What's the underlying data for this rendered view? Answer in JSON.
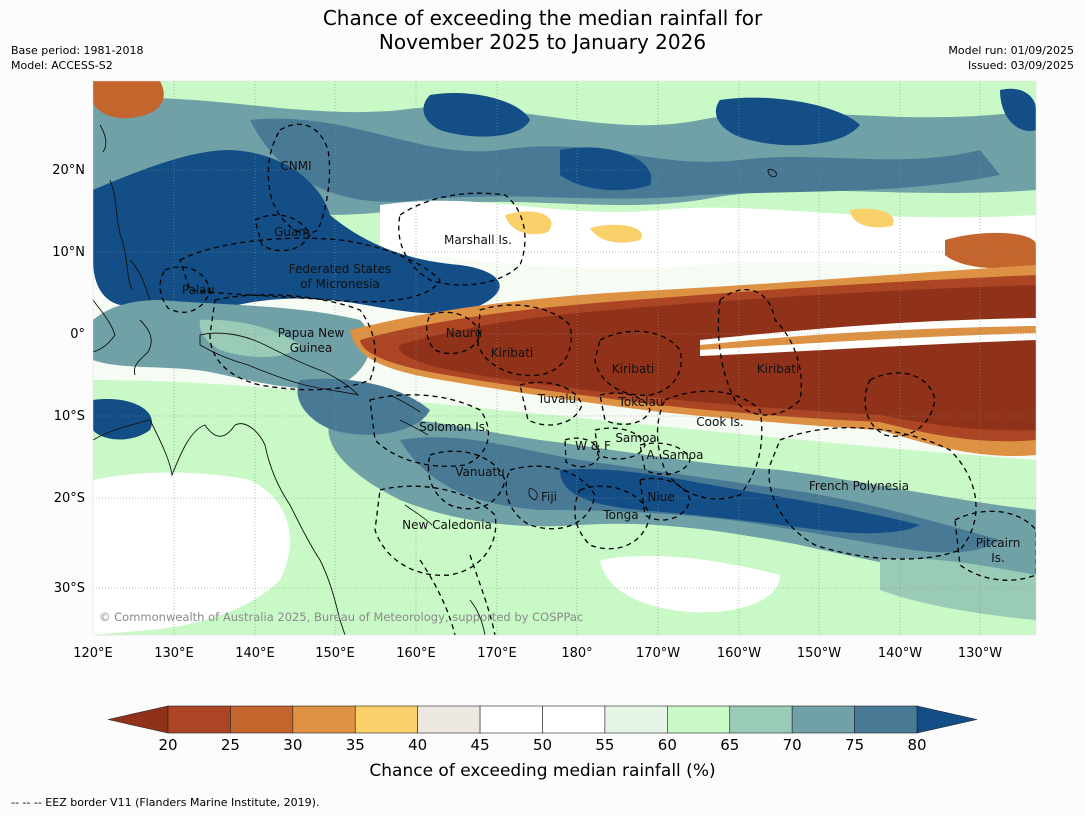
{
  "title_line1": "Chance of exceeding the median rainfall for",
  "title_line2": "November 2025 to January 2026",
  "meta": {
    "base_period": "Base period: 1981-2018",
    "model": "Model: ACCESS-S2",
    "model_run": "Model run: 01/09/2025",
    "issued": "Issued: 03/09/2025"
  },
  "map": {
    "lon_ticks": [
      "120°E",
      "130°E",
      "140°E",
      "150°E",
      "160°E",
      "170°E",
      "180°",
      "170°W",
      "160°W",
      "150°W",
      "140°W",
      "130°W"
    ],
    "lat_ticks": [
      "20°N",
      "10°N",
      "0°",
      "10°S",
      "20°S",
      "30°S"
    ],
    "copyright": "© Commonwealth of Australia 2025, Bureau of Meteorology, supported by COSPPac",
    "regions": [
      "CNMI",
      "Guam",
      "Marshall Is.",
      "Federated States",
      "of Micronesia",
      "Palau",
      "Papua New",
      "Guinea",
      "Nauru",
      "Kiribati",
      "Kiribati",
      "Kiribati",
      "Tuvalu",
      "Tokelau",
      "Cook Is.",
      "Solomon Is.",
      "Samoa",
      "W & F",
      "A. Samoa",
      "Vanuatu",
      "Fiji",
      "Niue",
      "Tonga",
      "French Polynesia",
      "New Caledonia",
      "Pitcairn",
      "Is."
    ]
  },
  "colorbar": {
    "ticks": [
      "20",
      "25",
      "30",
      "35",
      "40",
      "45",
      "50",
      "55",
      "60",
      "65",
      "70",
      "75",
      "80"
    ],
    "colors": [
      "#ac4524",
      "#c4652e",
      "#dd9143",
      "#fad06a",
      "#ece8e1",
      "#ffffff",
      "#ffffff",
      "#e6f5e6",
      "#c8f9c6",
      "#9acbb6",
      "#6fa1a7",
      "#487a95"
    ],
    "under_color": "#8f3219",
    "over_color": "#134e86",
    "label": "Chance of exceeding median rainfall (%)"
  },
  "footer": "--  --  -- EEZ border V11 (Flanders Marine Institute, 2019)."
}
